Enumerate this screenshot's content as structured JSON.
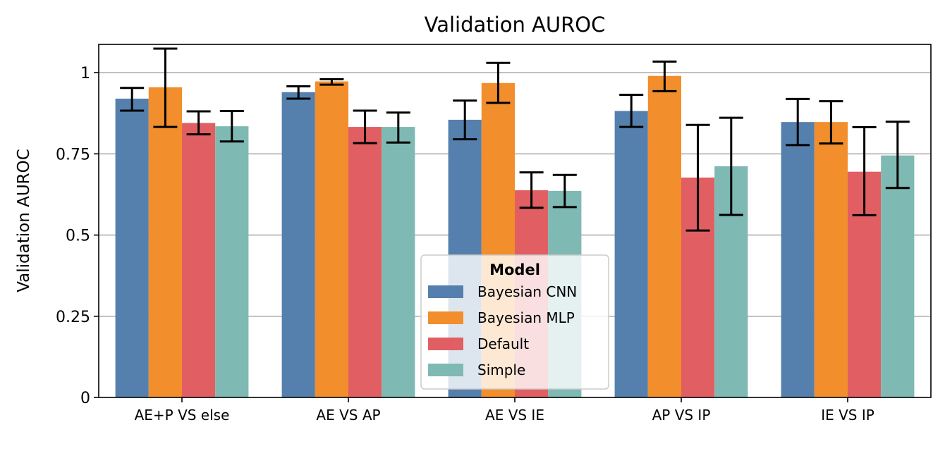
{
  "chart_data": {
    "type": "bar",
    "title": "Validation AUROC",
    "xlabel": "",
    "ylabel": "Validation AUROC",
    "ylim": [
      0,
      1.087
    ],
    "yticks": [
      0,
      0.25,
      0.5,
      0.75,
      1
    ],
    "ytick_labels": [
      "0",
      "0.25",
      "0.5",
      "0.75",
      "1"
    ],
    "grid": "horizontal",
    "categories": [
      "AE+P VS else",
      "AE VS AP",
      "AE VS IE",
      "AP VS IP",
      "IE VS IP"
    ],
    "series": [
      {
        "name": "Bayesian CNN",
        "color": "#5580ad",
        "values": [
          0.92,
          0.94,
          0.855,
          0.882,
          0.848
        ],
        "err_low": [
          0.883,
          0.92,
          0.795,
          0.833,
          0.777
        ],
        "err_high": [
          0.953,
          0.958,
          0.914,
          0.932,
          0.919
        ]
      },
      {
        "name": "Bayesian MLP",
        "color": "#f28e2b",
        "values": [
          0.955,
          0.973,
          0.968,
          0.99,
          0.848
        ],
        "err_low": [
          0.833,
          0.963,
          0.907,
          0.943,
          0.782
        ],
        "err_high": [
          1.074,
          0.98,
          1.03,
          1.034,
          0.912
        ]
      },
      {
        "name": "Default",
        "color": "#e15f62",
        "values": [
          0.845,
          0.833,
          0.638,
          0.677,
          0.695
        ],
        "err_low": [
          0.81,
          0.783,
          0.584,
          0.514,
          0.561
        ],
        "err_high": [
          0.881,
          0.883,
          0.693,
          0.839,
          0.832
        ]
      },
      {
        "name": "Simple",
        "color": "#7fb9b3",
        "values": [
          0.835,
          0.833,
          0.636,
          0.712,
          0.745
        ],
        "err_low": [
          0.788,
          0.785,
          0.586,
          0.562,
          0.645
        ],
        "err_high": [
          0.882,
          0.877,
          0.685,
          0.861,
          0.849
        ]
      }
    ],
    "legend": {
      "title": "Model",
      "placement": "bottom-center"
    }
  }
}
